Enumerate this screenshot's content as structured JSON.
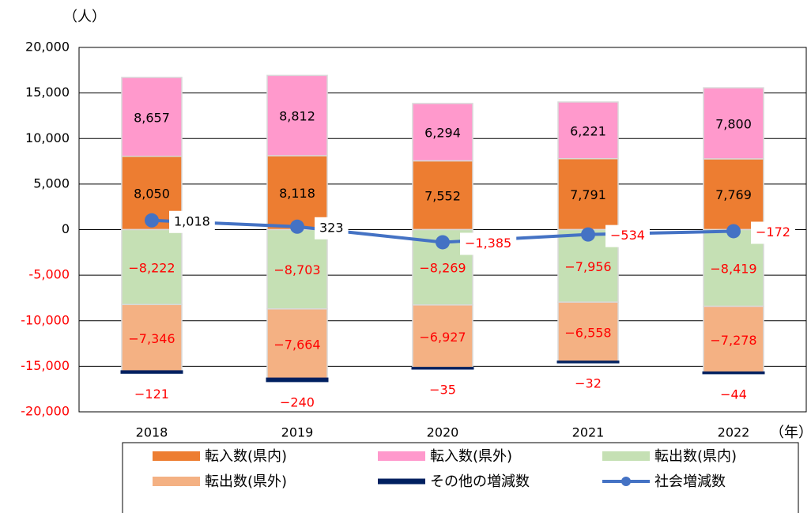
{
  "chart_data": {
    "type": "bar",
    "y_unit": "（人）",
    "x_unit": "（年）",
    "categories": [
      "2018",
      "2019",
      "2020",
      "2021",
      "2022"
    ],
    "ylim": [
      -20000,
      20000
    ],
    "yticks": [
      {
        "value": -20000,
        "label": "-20,000"
      },
      {
        "value": -15000,
        "label": "-15,000"
      },
      {
        "value": -10000,
        "label": "-10,000"
      },
      {
        "value": -5000,
        "label": "-5,000"
      },
      0,
      {
        "value": 5000,
        "label": "5,000"
      },
      {
        "value": 10000,
        "label": "10,000"
      },
      {
        "value": 15000,
        "label": "15,000"
      },
      {
        "value": 20000,
        "label": "20,000"
      }
    ],
    "grid": true,
    "stacked": true,
    "negative_color": "#FF0000",
    "legend": "bottom",
    "series": [
      {
        "name": "転入数(県内)",
        "type": "bar",
        "color": "#ED7D31",
        "values": [
          8050,
          8118,
          7552,
          7791,
          7769
        ],
        "value_labels": [
          "8,050",
          "8,118",
          "7,552",
          "7,791",
          "7,769"
        ]
      },
      {
        "name": "転入数(県外)",
        "type": "bar",
        "color": "#FF99CC",
        "values": [
          8657,
          8812,
          6294,
          6221,
          7800
        ],
        "value_labels": [
          "8,657",
          "8,812",
          "6,294",
          "6,221",
          "7,800"
        ]
      },
      {
        "name": "転出数(県内)",
        "type": "bar",
        "color": "#C5E0B4",
        "values": [
          -8222,
          -8703,
          -8269,
          -7956,
          -8419
        ],
        "value_labels": [
          "−8,222",
          "−8,703",
          "−8,269",
          "−7,956",
          "−8,419"
        ]
      },
      {
        "name": "転出数(県外)",
        "type": "bar",
        "color": "#F4B183",
        "values": [
          -7346,
          -7664,
          -6927,
          -6558,
          -7278
        ],
        "value_labels": [
          "−7,346",
          "−7,664",
          "−6,927",
          "−6,558",
          "−7,278"
        ]
      },
      {
        "name": "その他の増減数",
        "type": "bar",
        "color": "#002060",
        "values": [
          -121,
          -240,
          -35,
          -32,
          -44
        ],
        "value_labels": [
          "−121",
          "−240",
          "−35",
          "−32",
          "−44"
        ]
      },
      {
        "name": "社会増減数",
        "type": "line",
        "color": "#4472C4",
        "values": [
          1018,
          323,
          -1385,
          -534,
          -172
        ],
        "value_labels": [
          "1,018",
          "323",
          "−1,385",
          "−534",
          "−172"
        ]
      }
    ]
  }
}
